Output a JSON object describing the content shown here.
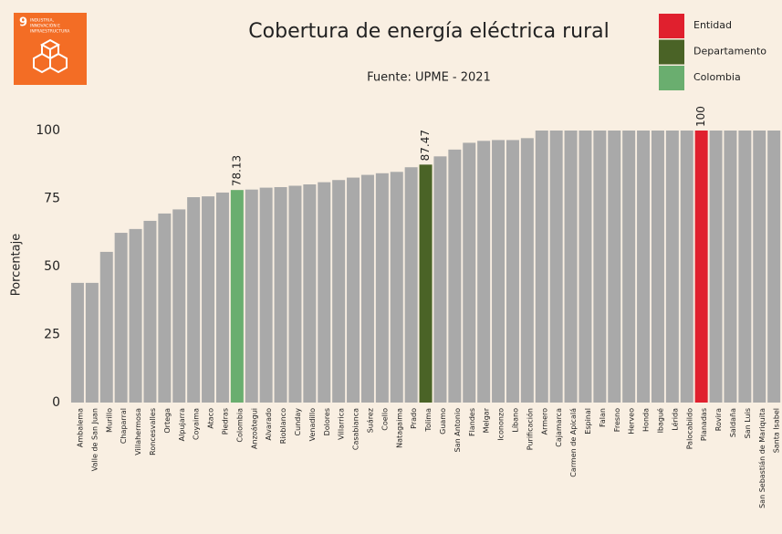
{
  "logo": {
    "number": "9",
    "lines": [
      "INDUSTRIA,",
      "INNOVACIÓN E",
      "INFRAESTRUCTURA"
    ]
  },
  "chart_data": {
    "type": "bar",
    "title": "Cobertura de energía eléctrica rural",
    "subtitle": "Fuente: UPME - 2021",
    "ylabel": "Porcentaje",
    "categories": [
      "Ambalema",
      "Valle de San Juan",
      "Murillo",
      "Chaparral",
      "Villahermosa",
      "Roncesvalles",
      "Ortega",
      "Alpujarra",
      "Coyaima",
      "Ataco",
      "Piedras",
      "Colombia",
      "Anzoátegui",
      "Alvarado",
      "Rioblanco",
      "Cunday",
      "Venadillo",
      "Dolores",
      "Villarrica",
      "Casabianca",
      "Suárez",
      "Coello",
      "Natagaima",
      "Prado",
      "Tolima",
      "Guamo",
      "San Antonio",
      "Flandes",
      "Melgar",
      "Icononzo",
      "Líbano",
      "Purificación",
      "Armero",
      "Cajamarca",
      "Carmen de Apicalá",
      "Espinal",
      "Falan",
      "Fresno",
      "Herveo",
      "Honda",
      "Ibagué",
      "Lérida",
      "Palocabildo",
      "Planadas",
      "Rovira",
      "Saldaña",
      "San Luis",
      "San Sebastián de Mariquita",
      "Santa Isabel"
    ],
    "values": [
      44,
      44,
      55.4,
      62.4,
      63.8,
      66.8,
      69.5,
      71,
      75.5,
      75.8,
      77.2,
      78.13,
      78.3,
      79,
      79.2,
      79.7,
      80.2,
      81,
      81.8,
      82.7,
      83.7,
      84.3,
      84.8,
      86.5,
      87.47,
      90.5,
      93,
      95.5,
      96.2,
      96.5,
      96.5,
      97.2,
      100,
      100,
      100,
      100,
      100,
      100,
      100,
      100,
      100,
      100,
      100,
      100,
      100,
      100,
      100,
      100,
      100
    ],
    "color": "#a9a9a9",
    "colors": [
      "#a9a9a9",
      "#a9a9a9",
      "#a9a9a9",
      "#a9a9a9",
      "#a9a9a9",
      "#a9a9a9",
      "#a9a9a9",
      "#a9a9a9",
      "#a9a9a9",
      "#a9a9a9",
      "#a9a9a9",
      "#6aae6f",
      "#a9a9a9",
      "#a9a9a9",
      "#a9a9a9",
      "#a9a9a9",
      "#a9a9a9",
      "#a9a9a9",
      "#a9a9a9",
      "#a9a9a9",
      "#a9a9a9",
      "#a9a9a9",
      "#a9a9a9",
      "#a9a9a9",
      "#4a6326",
      "#a9a9a9",
      "#a9a9a9",
      "#a9a9a9",
      "#a9a9a9",
      "#a9a9a9",
      "#a9a9a9",
      "#a9a9a9",
      "#a9a9a9",
      "#a9a9a9",
      "#a9a9a9",
      "#a9a9a9",
      "#a9a9a9",
      "#a9a9a9",
      "#a9a9a9",
      "#a9a9a9",
      "#a9a9a9",
      "#a9a9a9",
      "#a9a9a9",
      "#e0202e",
      "#a9a9a9",
      "#a9a9a9",
      "#a9a9a9",
      "#a9a9a9",
      "#a9a9a9"
    ],
    "legend": [
      {
        "name": "Entidad",
        "color": "#e0202e"
      },
      {
        "name": "Departamento",
        "color": "#4a6326"
      },
      {
        "name": "Colombia",
        "color": "#6aae6f"
      }
    ],
    "ylim": [
      0,
      100
    ],
    "yticks": [
      0,
      25,
      50,
      75,
      100
    ],
    "grid": false
  }
}
